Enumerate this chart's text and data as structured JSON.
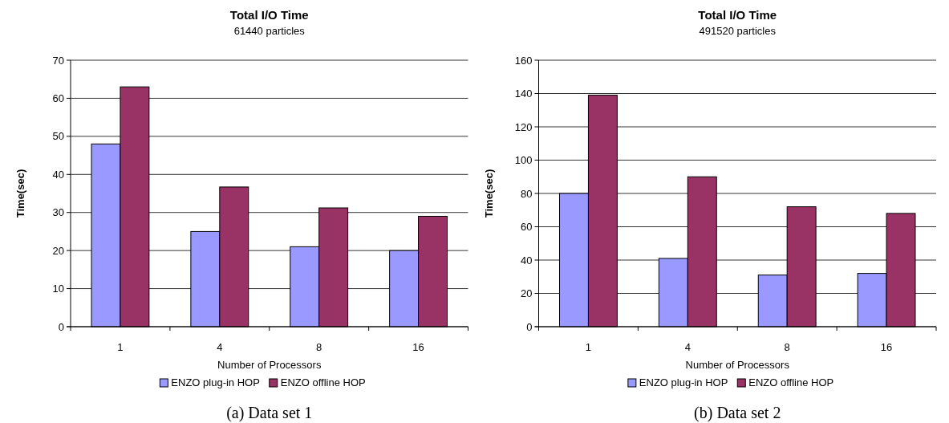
{
  "chart_data": [
    {
      "type": "bar",
      "title": "Total I/O Time",
      "subtitle": "61440 particles",
      "xlabel": "Number of Processors",
      "ylabel": "Time(sec)",
      "categories": [
        "1",
        "4",
        "8",
        "16"
      ],
      "series": [
        {
          "name": "ENZO plug-in HOP",
          "color": "#9999ff",
          "values": [
            48,
            25,
            21,
            20
          ]
        },
        {
          "name": "ENZO offline HOP",
          "color": "#993366",
          "values": [
            63,
            36.7,
            31.2,
            29
          ]
        }
      ],
      "ylim": [
        0,
        70
      ],
      "yticks": [
        0,
        10,
        20,
        30,
        40,
        50,
        60,
        70
      ],
      "grid": "y",
      "legend": "bottom",
      "annotations": [
        "(a) Data set 1"
      ]
    },
    {
      "type": "bar",
      "title": "Total I/O Time",
      "subtitle": "491520 particles",
      "xlabel": "Number of Processors",
      "ylabel": "Time(sec)",
      "categories": [
        "1",
        "4",
        "8",
        "16"
      ],
      "series": [
        {
          "name": "ENZO plug-in HOP",
          "color": "#9999ff",
          "values": [
            80,
            41,
            31,
            32
          ]
        },
        {
          "name": "ENZO offline HOP",
          "color": "#993366",
          "values": [
            139,
            90,
            72,
            68
          ]
        }
      ],
      "ylim": [
        0,
        160
      ],
      "yticks": [
        0,
        20,
        40,
        60,
        80,
        100,
        120,
        140,
        160
      ],
      "grid": "y",
      "legend": "bottom",
      "annotations": [
        "(b) Data set 2"
      ]
    }
  ]
}
